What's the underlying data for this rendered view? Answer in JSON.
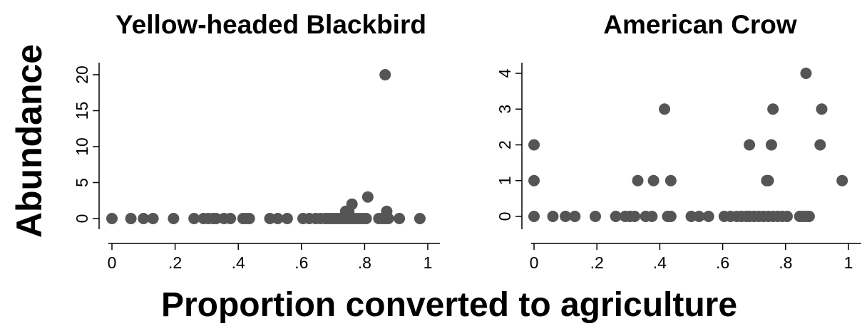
{
  "figure": {
    "shared_ylabel": "Abundance",
    "shared_xlabel": "Proportion converted to agriculture"
  },
  "chart_data": [
    {
      "type": "scatter",
      "title": "Yellow-headed Blackbird",
      "xlabel": "Proportion converted to agriculture",
      "ylabel": "Abundance",
      "xlim": [
        0,
        1
      ],
      "ylim": [
        0,
        20
      ],
      "xticks": [
        0,
        0.2,
        0.4,
        0.6,
        0.8,
        1
      ],
      "xtick_labels": [
        "0",
        ".2",
        ".4",
        ".6",
        ".8",
        "1"
      ],
      "yticks": [
        0,
        5,
        10,
        15,
        20
      ],
      "ytick_labels": [
        "0",
        "5",
        "10",
        "15",
        "20"
      ],
      "grid": false,
      "marker_color": "#555555",
      "points": [
        {
          "x": 0.0,
          "y": 0
        },
        {
          "x": 0.06,
          "y": 0
        },
        {
          "x": 0.1,
          "y": 0
        },
        {
          "x": 0.13,
          "y": 0
        },
        {
          "x": 0.195,
          "y": 0
        },
        {
          "x": 0.26,
          "y": 0
        },
        {
          "x": 0.29,
          "y": 0
        },
        {
          "x": 0.305,
          "y": 0
        },
        {
          "x": 0.32,
          "y": 0
        },
        {
          "x": 0.33,
          "y": 0
        },
        {
          "x": 0.355,
          "y": 0
        },
        {
          "x": 0.375,
          "y": 0
        },
        {
          "x": 0.415,
          "y": 0
        },
        {
          "x": 0.425,
          "y": 0
        },
        {
          "x": 0.435,
          "y": 0
        },
        {
          "x": 0.5,
          "y": 0
        },
        {
          "x": 0.525,
          "y": 0
        },
        {
          "x": 0.555,
          "y": 0
        },
        {
          "x": 0.605,
          "y": 0
        },
        {
          "x": 0.625,
          "y": 0
        },
        {
          "x": 0.645,
          "y": 0
        },
        {
          "x": 0.66,
          "y": 0
        },
        {
          "x": 0.675,
          "y": 0
        },
        {
          "x": 0.685,
          "y": 0
        },
        {
          "x": 0.695,
          "y": 0
        },
        {
          "x": 0.705,
          "y": 0
        },
        {
          "x": 0.715,
          "y": 0
        },
        {
          "x": 0.725,
          "y": 0
        },
        {
          "x": 0.735,
          "y": 0
        },
        {
          "x": 0.745,
          "y": 0
        },
        {
          "x": 0.755,
          "y": 0
        },
        {
          "x": 0.765,
          "y": 0
        },
        {
          "x": 0.775,
          "y": 0
        },
        {
          "x": 0.785,
          "y": 0
        },
        {
          "x": 0.795,
          "y": 0
        },
        {
          "x": 0.805,
          "y": 0
        },
        {
          "x": 0.845,
          "y": 0
        },
        {
          "x": 0.855,
          "y": 0
        },
        {
          "x": 0.865,
          "y": 0
        },
        {
          "x": 0.875,
          "y": 0
        },
        {
          "x": 0.91,
          "y": 0
        },
        {
          "x": 0.975,
          "y": 0
        },
        {
          "x": 0.74,
          "y": 1
        },
        {
          "x": 0.75,
          "y": 1
        },
        {
          "x": 0.87,
          "y": 1
        },
        {
          "x": 0.76,
          "y": 2
        },
        {
          "x": 0.81,
          "y": 3
        },
        {
          "x": 0.865,
          "y": 20
        }
      ]
    },
    {
      "type": "scatter",
      "title": "American Crow",
      "xlabel": "Proportion converted to agriculture",
      "ylabel": "Abundance",
      "xlim": [
        0,
        1
      ],
      "ylim": [
        0,
        4
      ],
      "xticks": [
        0,
        0.2,
        0.4,
        0.6,
        0.8,
        1
      ],
      "xtick_labels": [
        "0",
        ".2",
        ".4",
        ".6",
        ".8",
        "1"
      ],
      "yticks": [
        0,
        1,
        2,
        3,
        4
      ],
      "ytick_labels": [
        "0",
        "1",
        "2",
        "3",
        "4"
      ],
      "grid": false,
      "marker_color": "#555555",
      "points": [
        {
          "x": 0.0,
          "y": 0
        },
        {
          "x": 0.06,
          "y": 0
        },
        {
          "x": 0.1,
          "y": 0
        },
        {
          "x": 0.13,
          "y": 0
        },
        {
          "x": 0.195,
          "y": 0
        },
        {
          "x": 0.26,
          "y": 0
        },
        {
          "x": 0.29,
          "y": 0
        },
        {
          "x": 0.305,
          "y": 0
        },
        {
          "x": 0.32,
          "y": 0
        },
        {
          "x": 0.355,
          "y": 0
        },
        {
          "x": 0.375,
          "y": 0
        },
        {
          "x": 0.425,
          "y": 0
        },
        {
          "x": 0.435,
          "y": 0
        },
        {
          "x": 0.5,
          "y": 0
        },
        {
          "x": 0.525,
          "y": 0
        },
        {
          "x": 0.555,
          "y": 0
        },
        {
          "x": 0.605,
          "y": 0
        },
        {
          "x": 0.625,
          "y": 0
        },
        {
          "x": 0.645,
          "y": 0
        },
        {
          "x": 0.66,
          "y": 0
        },
        {
          "x": 0.675,
          "y": 0
        },
        {
          "x": 0.685,
          "y": 0
        },
        {
          "x": 0.7,
          "y": 0
        },
        {
          "x": 0.715,
          "y": 0
        },
        {
          "x": 0.73,
          "y": 0
        },
        {
          "x": 0.745,
          "y": 0
        },
        {
          "x": 0.76,
          "y": 0
        },
        {
          "x": 0.775,
          "y": 0
        },
        {
          "x": 0.79,
          "y": 0
        },
        {
          "x": 0.805,
          "y": 0
        },
        {
          "x": 0.845,
          "y": 0
        },
        {
          "x": 0.855,
          "y": 0
        },
        {
          "x": 0.865,
          "y": 0
        },
        {
          "x": 0.875,
          "y": 0
        },
        {
          "x": 0.0,
          "y": 1
        },
        {
          "x": 0.33,
          "y": 1
        },
        {
          "x": 0.38,
          "y": 1
        },
        {
          "x": 0.435,
          "y": 1
        },
        {
          "x": 0.74,
          "y": 1
        },
        {
          "x": 0.745,
          "y": 1
        },
        {
          "x": 0.98,
          "y": 1
        },
        {
          "x": 0.0,
          "y": 2
        },
        {
          "x": 0.685,
          "y": 2
        },
        {
          "x": 0.755,
          "y": 2
        },
        {
          "x": 0.91,
          "y": 2
        },
        {
          "x": 0.415,
          "y": 3
        },
        {
          "x": 0.76,
          "y": 3
        },
        {
          "x": 0.915,
          "y": 3
        },
        {
          "x": 0.865,
          "y": 4
        }
      ]
    }
  ]
}
